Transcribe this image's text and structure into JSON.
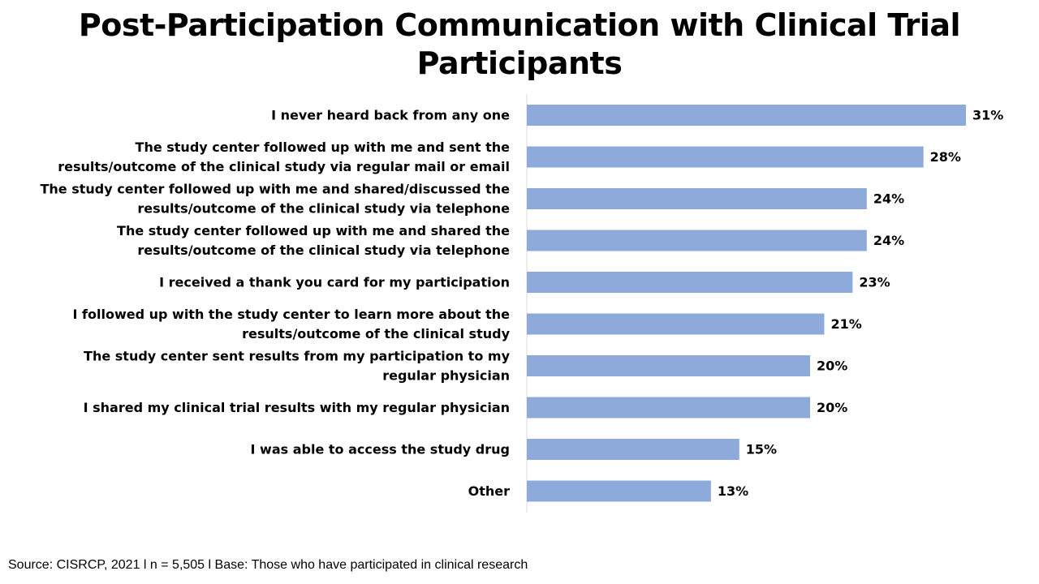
{
  "chart_data": {
    "type": "bar",
    "orientation": "horizontal",
    "title": "Post-Participation Communication with Clinical Trial Participants",
    "categories": [
      [
        "I never heard back from any one"
      ],
      [
        "The study center followed up with me and sent the",
        "results/outcome of the clinical study via regular mail or email"
      ],
      [
        "The study center followed up with me and shared/discussed the",
        "results/outcome of the clinical study via telephone"
      ],
      [
        "The study center followed up with me and shared the",
        "results/outcome of the clinical study via telephone"
      ],
      [
        "I received a thank you card for my participation"
      ],
      [
        "I followed up with the study center to learn more about the",
        "results/outcome of the clinical study"
      ],
      [
        "The study center sent results from my participation to my",
        "regular physician"
      ],
      [
        "I shared my clinical trial results with my regular physician"
      ],
      [
        "I was able to access the study drug"
      ],
      [
        "Other"
      ]
    ],
    "values": [
      31,
      28,
      24,
      24,
      23,
      21,
      20,
      20,
      15,
      13
    ],
    "value_labels": [
      "31%",
      "28%",
      "24%",
      "24%",
      "23%",
      "21%",
      "20%",
      "20%",
      "15%",
      "13%"
    ],
    "xlim": [
      0,
      31
    ],
    "grid": false,
    "legend": "none",
    "bar_color": "#8eaadb",
    "axis_color": "#d9d9d9"
  },
  "footer": {
    "source": "Source: CISRCP, 2021 l n = 5,505 l Base: Those who have participated in clinical research"
  }
}
